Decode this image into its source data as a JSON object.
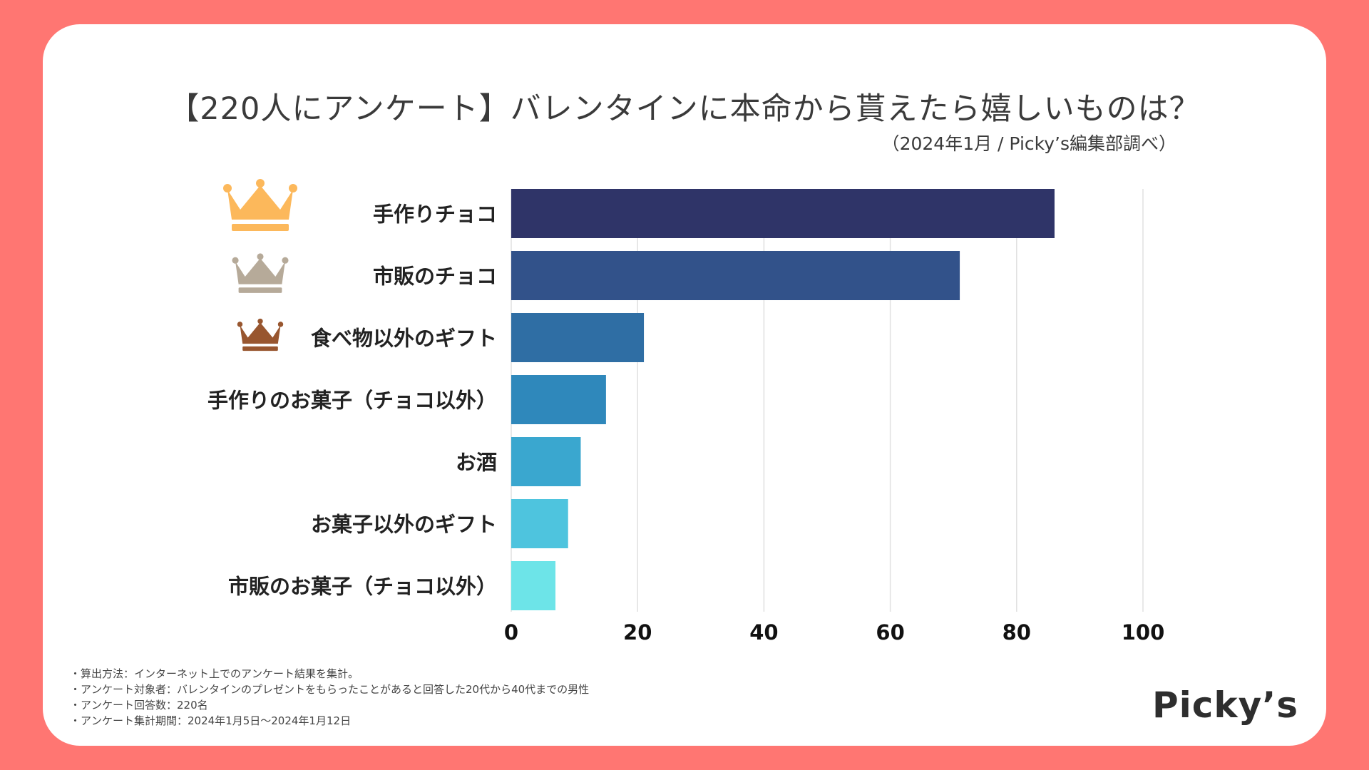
{
  "header": {
    "title": "【220人にアンケート】バレンタインに本命から貰えたら嬉しいものは？",
    "subtitle": "（2024年1月 / Picky’s編集部調べ）"
  },
  "chart_data": {
    "type": "bar",
    "orientation": "horizontal",
    "title": "【220人にアンケート】バレンタインに本命から貰えたら嬉しいものは？",
    "categories": [
      "手作りチョコ",
      "市販のチョコ",
      "食べ物以外のギフト",
      "手作りのお菓子（チョコ以外）",
      "お酒",
      "お菓子以外のギフト",
      "市販のお菓子（チョコ以外）"
    ],
    "values": [
      86,
      71,
      21,
      15,
      11,
      9,
      7
    ],
    "colors": [
      "#2f3468",
      "#32528a",
      "#2f6ea4",
      "#2f88bb",
      "#3aa7cf",
      "#4ec4de",
      "#6de4e8"
    ],
    "xlim": [
      0,
      100
    ],
    "xticks": [
      0,
      20,
      40,
      60,
      80,
      100
    ],
    "grid": true,
    "rank_icons": [
      {
        "name": "gold-crown-icon",
        "color": "#fcb85b"
      },
      {
        "name": "silver-crown-icon",
        "color": "#b6aa99"
      },
      {
        "name": "bronze-crown-icon",
        "color": "#98562f"
      }
    ]
  },
  "notes": [
    "・算出方法：インターネット上でのアンケート結果を集計。",
    "・アンケート対象者：バレンタインのプレゼントをもらったことがあると回答した20代から40代までの男性",
    "・アンケート回答数：220名",
    "・アンケート集計期間：2024年1月5日〜2024年1月12日"
  ],
  "logo": "Picky’s"
}
